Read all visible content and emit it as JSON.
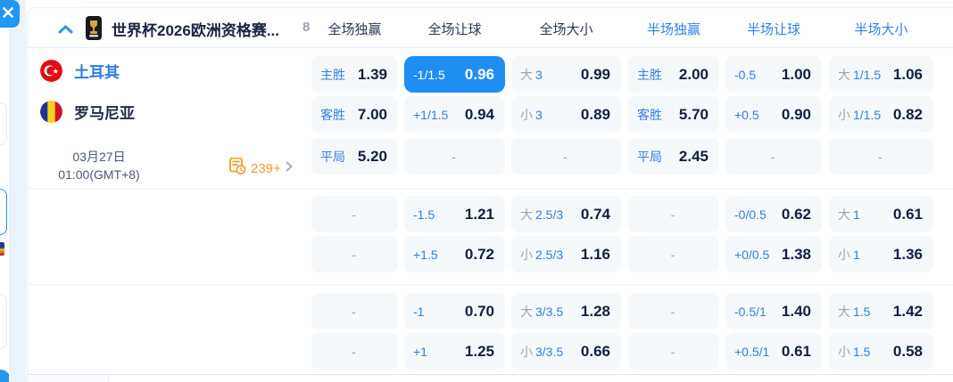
{
  "window": {
    "close_icon": "close"
  },
  "header": {
    "title": "世界杯2026欧洲资格赛...",
    "count": "8",
    "columns": [
      {
        "label": "全场独赢",
        "tone": "dark"
      },
      {
        "label": "全场让球",
        "tone": "dark"
      },
      {
        "label": "全场大小",
        "tone": "dark"
      },
      {
        "label": "半场独赢",
        "tone": "blue"
      },
      {
        "label": "半场让球",
        "tone": "blue"
      },
      {
        "label": "半场大小",
        "tone": "blue"
      }
    ]
  },
  "match": {
    "home_team": "土耳其",
    "away_team": "罗马尼亚",
    "date": "03月27日",
    "time": "01:00(GMT+8)",
    "more_markets_count": "239+"
  },
  "empty_placeholder": "-",
  "colors": {
    "accent_blue": "#2196f3",
    "selected_cell": "#1e8ff2",
    "label_blue": "#2e7fe0",
    "value_dark": "#10203f",
    "orange": "#f59a23"
  },
  "odds_rows": [
    {
      "cells": [
        {
          "label": "主胜",
          "value": "1.39",
          "state": "normal"
        },
        {
          "label": "-1/1.5",
          "value": "0.96",
          "state": "selected"
        },
        {
          "prefix": "大",
          "label": "3",
          "value": "0.99",
          "state": "normal"
        },
        {
          "label": "主胜",
          "value": "2.00",
          "state": "normal"
        },
        {
          "label": "-0.5",
          "value": "1.00",
          "state": "normal"
        },
        {
          "prefix": "大",
          "label": "1/1.5",
          "value": "1.06",
          "state": "normal"
        }
      ]
    },
    {
      "cells": [
        {
          "label": "客胜",
          "value": "7.00",
          "state": "normal"
        },
        {
          "label": "+1/1.5",
          "value": "0.94",
          "state": "normal"
        },
        {
          "prefix": "小",
          "label": "3",
          "value": "0.89",
          "state": "normal"
        },
        {
          "label": "客胜",
          "value": "5.70",
          "state": "normal"
        },
        {
          "label": "+0.5",
          "value": "0.90",
          "state": "normal"
        },
        {
          "prefix": "小",
          "label": "1/1.5",
          "value": "0.82",
          "state": "normal"
        }
      ]
    },
    {
      "cells": [
        {
          "label": "平局",
          "value": "5.20",
          "state": "normal"
        },
        {
          "state": "empty"
        },
        {
          "state": "empty"
        },
        {
          "label": "平局",
          "value": "2.45",
          "state": "normal"
        },
        {
          "state": "empty"
        },
        {
          "state": "empty"
        }
      ]
    },
    {
      "cells": [
        {
          "state": "empty"
        },
        {
          "label": "-1.5",
          "value": "1.21",
          "state": "normal"
        },
        {
          "prefix": "大",
          "label": "2.5/3",
          "value": "0.74",
          "state": "normal"
        },
        {
          "state": "empty"
        },
        {
          "label": "-0/0.5",
          "value": "0.62",
          "state": "normal"
        },
        {
          "prefix": "大",
          "label": "1",
          "value": "0.61",
          "state": "normal"
        }
      ]
    },
    {
      "cells": [
        {
          "state": "empty"
        },
        {
          "label": "+1.5",
          "value": "0.72",
          "state": "normal"
        },
        {
          "prefix": "小",
          "label": "2.5/3",
          "value": "1.16",
          "state": "normal"
        },
        {
          "state": "empty"
        },
        {
          "label": "+0/0.5",
          "value": "1.38",
          "state": "normal"
        },
        {
          "prefix": "小",
          "label": "1",
          "value": "1.36",
          "state": "normal"
        }
      ]
    },
    {
      "cells": [
        {
          "state": "empty"
        },
        {
          "label": "-1",
          "value": "0.70",
          "state": "normal"
        },
        {
          "prefix": "大",
          "label": "3/3.5",
          "value": "1.28",
          "state": "normal"
        },
        {
          "state": "empty"
        },
        {
          "label": "-0.5/1",
          "value": "1.40",
          "state": "normal"
        },
        {
          "prefix": "大",
          "label": "1.5",
          "value": "1.42",
          "state": "normal"
        }
      ]
    },
    {
      "cells": [
        {
          "state": "empty"
        },
        {
          "label": "+1",
          "value": "1.25",
          "state": "normal"
        },
        {
          "prefix": "小",
          "label": "3/3.5",
          "value": "0.66",
          "state": "normal"
        },
        {
          "state": "empty"
        },
        {
          "label": "+0.5/1",
          "value": "0.61",
          "state": "normal"
        },
        {
          "prefix": "小",
          "label": "1.5",
          "value": "0.58",
          "state": "normal"
        }
      ]
    }
  ]
}
